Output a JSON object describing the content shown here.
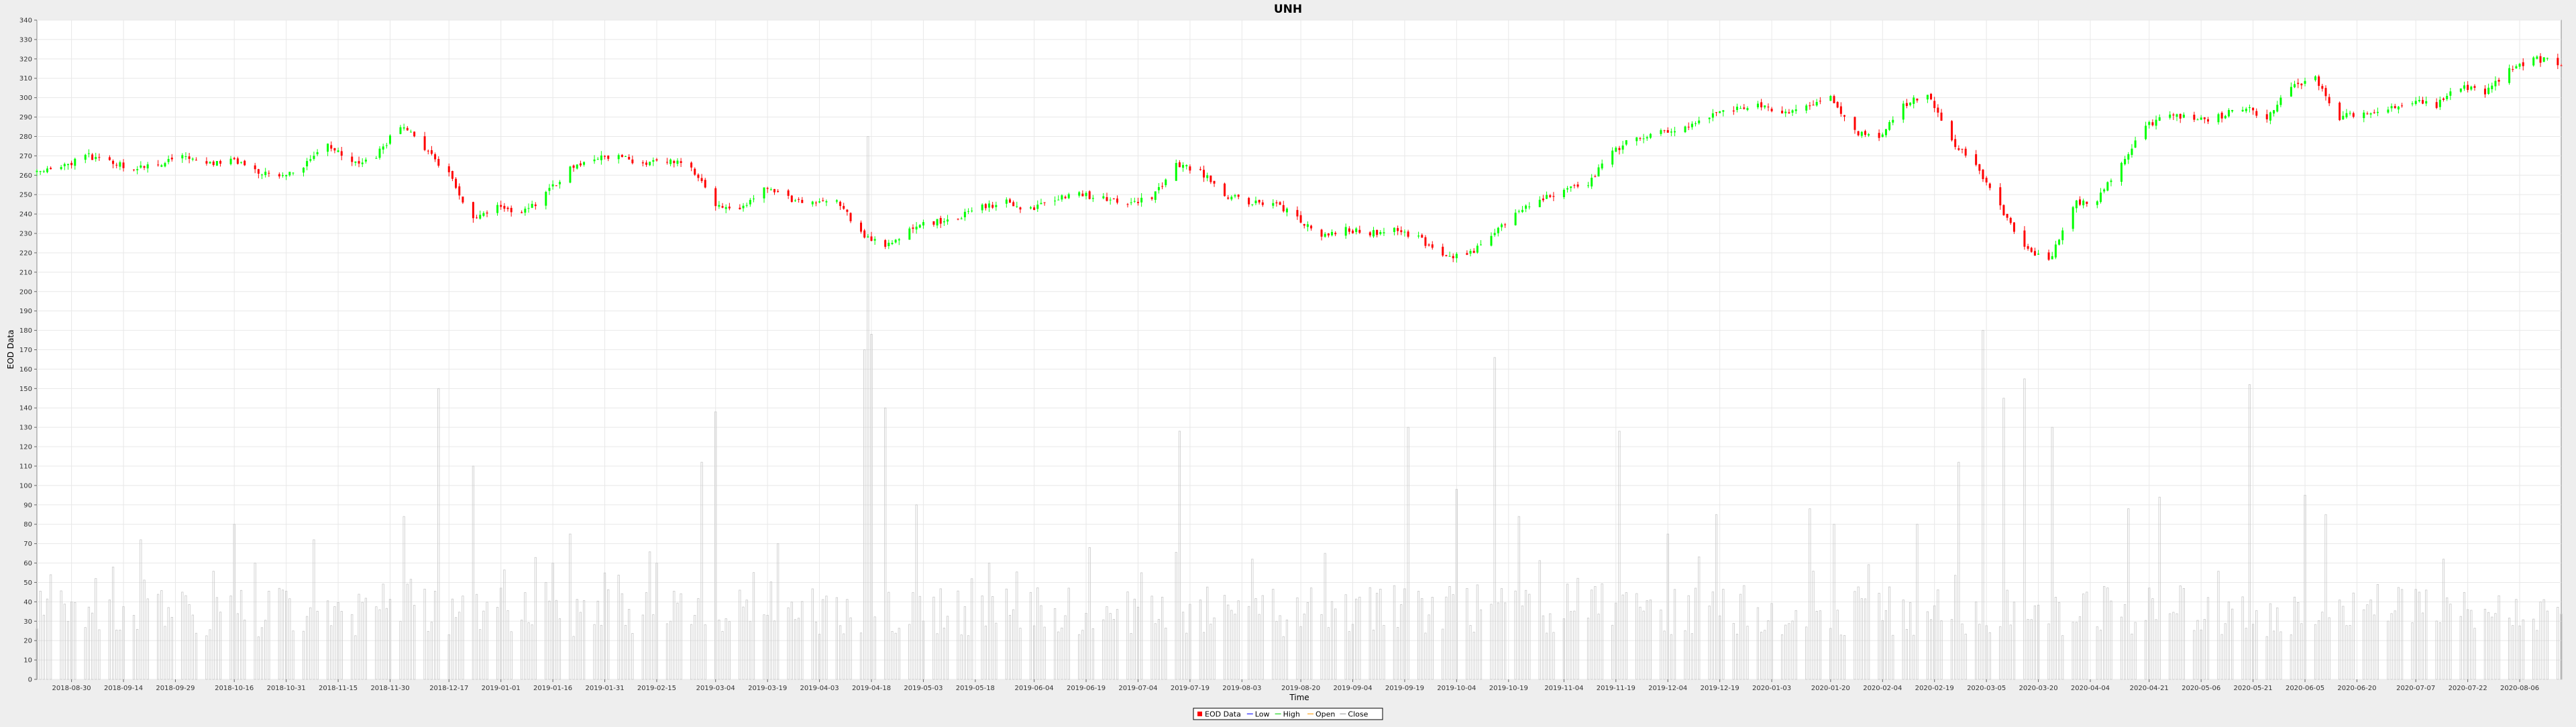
{
  "chart_data": {
    "type": "candlestick",
    "title": "UNH",
    "xlabel": "Time",
    "ylabel": "EOD Data",
    "ylim": [
      0,
      340
    ],
    "y_ticks": [
      0,
      10,
      20,
      30,
      40,
      50,
      60,
      70,
      80,
      90,
      100,
      110,
      120,
      130,
      140,
      150,
      160,
      170,
      180,
      190,
      200,
      210,
      220,
      230,
      240,
      250,
      260,
      270,
      280,
      290,
      300,
      310,
      320,
      330,
      340
    ],
    "x_range": [
      "2018-08-20",
      "2020-08-18"
    ],
    "x_ticks": [
      "2018-08-30",
      "2018-09-14",
      "2018-09-29",
      "2018-10-16",
      "2018-10-31",
      "2018-11-15",
      "2018-11-30",
      "2018-12-17",
      "2019-01-01",
      "2019-01-16",
      "2019-01-31",
      "2019-02-15",
      "2019-03-04",
      "2019-03-19",
      "2019-04-03",
      "2019-04-18",
      "2019-05-03",
      "2019-05-18",
      "2019-06-04",
      "2019-06-19",
      "2019-07-04",
      "2019-07-19",
      "2019-08-03",
      "2019-08-20",
      "2019-09-04",
      "2019-09-19",
      "2019-10-04",
      "2019-10-19",
      "2019-11-04",
      "2019-11-19",
      "2019-12-04",
      "2019-12-19",
      "2020-01-03",
      "2020-01-20",
      "2020-02-04",
      "2020-02-19",
      "2020-03-05",
      "2020-03-20",
      "2020-04-04",
      "2020-04-21",
      "2020-05-06",
      "2020-05-21",
      "2020-06-05",
      "2020-06-20",
      "2020-07-07",
      "2020-07-22",
      "2020-08-06"
    ],
    "price_path": [
      [
        "2018-08-20",
        262
      ],
      [
        "2018-08-27",
        264
      ],
      [
        "2018-09-03",
        270
      ],
      [
        "2018-09-10",
        268
      ],
      [
        "2018-09-17",
        263
      ],
      [
        "2018-09-24",
        266
      ],
      [
        "2018-10-01",
        270
      ],
      [
        "2018-10-08",
        266
      ],
      [
        "2018-10-15",
        268
      ],
      [
        "2018-10-22",
        262
      ],
      [
        "2018-10-29",
        260
      ],
      [
        "2018-11-05",
        265
      ],
      [
        "2018-11-12",
        276
      ],
      [
        "2018-11-19",
        266
      ],
      [
        "2018-11-26",
        270
      ],
      [
        "2018-12-03",
        286
      ],
      [
        "2018-12-10",
        274
      ],
      [
        "2018-12-17",
        260
      ],
      [
        "2018-12-24",
        238
      ],
      [
        "2018-12-31",
        244
      ],
      [
        "2019-01-07",
        240
      ],
      [
        "2019-01-14",
        250
      ],
      [
        "2019-01-21",
        264
      ],
      [
        "2019-01-28",
        268
      ],
      [
        "2019-02-04",
        270
      ],
      [
        "2019-02-11",
        266
      ],
      [
        "2019-02-18",
        268
      ],
      [
        "2019-02-25",
        264
      ],
      [
        "2019-03-04",
        244
      ],
      [
        "2019-03-11",
        242
      ],
      [
        "2019-03-18",
        254
      ],
      [
        "2019-03-25",
        248
      ],
      [
        "2019-04-01",
        246
      ],
      [
        "2019-04-08",
        247
      ],
      [
        "2019-04-15",
        230
      ],
      [
        "2019-04-22",
        224
      ],
      [
        "2019-04-29",
        232
      ],
      [
        "2019-05-06",
        236
      ],
      [
        "2019-05-13",
        238
      ],
      [
        "2019-05-20",
        244
      ],
      [
        "2019-05-27",
        246
      ],
      [
        "2019-06-03",
        242
      ],
      [
        "2019-06-10",
        248
      ],
      [
        "2019-06-17",
        250
      ],
      [
        "2019-06-24",
        248
      ],
      [
        "2019-07-01",
        246
      ],
      [
        "2019-07-08",
        248
      ],
      [
        "2019-07-15",
        265
      ],
      [
        "2019-07-22",
        262
      ],
      [
        "2019-07-29",
        250
      ],
      [
        "2019-08-05",
        246
      ],
      [
        "2019-08-12",
        246
      ],
      [
        "2019-08-19",
        238
      ],
      [
        "2019-08-26",
        228
      ],
      [
        "2019-09-02",
        232
      ],
      [
        "2019-09-09",
        230
      ],
      [
        "2019-09-16",
        232
      ],
      [
        "2019-09-23",
        228
      ],
      [
        "2019-09-30",
        218
      ],
      [
        "2019-10-07",
        218
      ],
      [
        "2019-10-14",
        228
      ],
      [
        "2019-10-21",
        242
      ],
      [
        "2019-10-28",
        248
      ],
      [
        "2019-11-04",
        252
      ],
      [
        "2019-11-11",
        256
      ],
      [
        "2019-11-18",
        272
      ],
      [
        "2019-11-25",
        280
      ],
      [
        "2019-12-02",
        282
      ],
      [
        "2019-12-09",
        284
      ],
      [
        "2019-12-16",
        290
      ],
      [
        "2019-12-23",
        294
      ],
      [
        "2019-12-30",
        296
      ],
      [
        "2020-01-06",
        292
      ],
      [
        "2020-01-13",
        296
      ],
      [
        "2020-01-20",
        300
      ],
      [
        "2020-01-27",
        282
      ],
      [
        "2020-02-03",
        280
      ],
      [
        "2020-02-10",
        296
      ],
      [
        "2020-02-17",
        302
      ],
      [
        "2020-02-24",
        278
      ],
      [
        "2020-03-02",
        265
      ],
      [
        "2020-03-09",
        244
      ],
      [
        "2020-03-16",
        222
      ],
      [
        "2020-03-23",
        215
      ],
      [
        "2020-03-30",
        245
      ],
      [
        "2020-04-06",
        248
      ],
      [
        "2020-04-13",
        265
      ],
      [
        "2020-04-20",
        285
      ],
      [
        "2020-04-27",
        292
      ],
      [
        "2020-05-04",
        288
      ],
      [
        "2020-05-11",
        290
      ],
      [
        "2020-05-18",
        295
      ],
      [
        "2020-05-25",
        290
      ],
      [
        "2020-06-01",
        306
      ],
      [
        "2020-06-08",
        310
      ],
      [
        "2020-06-15",
        290
      ],
      [
        "2020-06-22",
        293
      ],
      [
        "2020-06-29",
        294
      ],
      [
        "2020-07-06",
        298
      ],
      [
        "2020-07-13",
        296
      ],
      [
        "2020-07-20",
        306
      ],
      [
        "2020-07-27",
        302
      ],
      [
        "2020-08-03",
        314
      ],
      [
        "2020-08-10",
        320
      ],
      [
        "2020-08-18",
        318
      ]
    ],
    "volume_spikes": [
      [
        "2018-08-30",
        40
      ],
      [
        "2018-09-06",
        52
      ],
      [
        "2018-09-19",
        72
      ],
      [
        "2018-10-01",
        45
      ],
      [
        "2018-10-16",
        80
      ],
      [
        "2018-10-22",
        60
      ],
      [
        "2018-11-08",
        72
      ],
      [
        "2018-12-04",
        84
      ],
      [
        "2018-12-14",
        150
      ],
      [
        "2018-12-24",
        110
      ],
      [
        "2019-01-16",
        60
      ],
      [
        "2019-01-21",
        75
      ],
      [
        "2019-02-15",
        60
      ],
      [
        "2019-02-28",
        112
      ],
      [
        "2019-03-04",
        138
      ],
      [
        "2019-03-22",
        70
      ],
      [
        "2019-04-16",
        170
      ],
      [
        "2019-04-17",
        280
      ],
      [
        "2019-04-18",
        178
      ],
      [
        "2019-04-22",
        140
      ],
      [
        "2019-05-01",
        90
      ],
      [
        "2019-05-22",
        60
      ],
      [
        "2019-06-20",
        68
      ],
      [
        "2019-07-05",
        55
      ],
      [
        "2019-07-16",
        128
      ],
      [
        "2019-08-06",
        62
      ],
      [
        "2019-08-27",
        65
      ],
      [
        "2019-09-20",
        130
      ],
      [
        "2019-10-04",
        98
      ],
      [
        "2019-10-15",
        166
      ],
      [
        "2019-10-22",
        84
      ],
      [
        "2019-11-20",
        128
      ],
      [
        "2019-12-04",
        75
      ],
      [
        "2019-12-18",
        85
      ],
      [
        "2020-01-14",
        88
      ],
      [
        "2020-01-21",
        80
      ],
      [
        "2020-02-14",
        80
      ],
      [
        "2020-02-26",
        112
      ],
      [
        "2020-03-04",
        180
      ],
      [
        "2020-03-10",
        145
      ],
      [
        "2020-03-16",
        155
      ],
      [
        "2020-03-24",
        130
      ],
      [
        "2020-04-15",
        88
      ],
      [
        "2020-04-24",
        94
      ],
      [
        "2020-05-20",
        152
      ],
      [
        "2020-06-05",
        95
      ],
      [
        "2020-06-11",
        85
      ],
      [
        "2020-07-15",
        62
      ]
    ],
    "grid": true,
    "legend_position": "bottom",
    "legend": [
      {
        "label": "EOD Data",
        "color": "#ff0000"
      },
      {
        "label": "Low",
        "color": "#0000ff"
      },
      {
        "label": "High",
        "color": "#00cc00"
      },
      {
        "label": "Open",
        "color": "#ff9900"
      },
      {
        "label": "Close",
        "color": "#999999"
      }
    ],
    "colors": {
      "up": "#00ff00",
      "down": "#ff0000",
      "volume": "#c8c8c8",
      "grid": "#e8e8e8",
      "plot_bg": "#ffffff"
    }
  }
}
